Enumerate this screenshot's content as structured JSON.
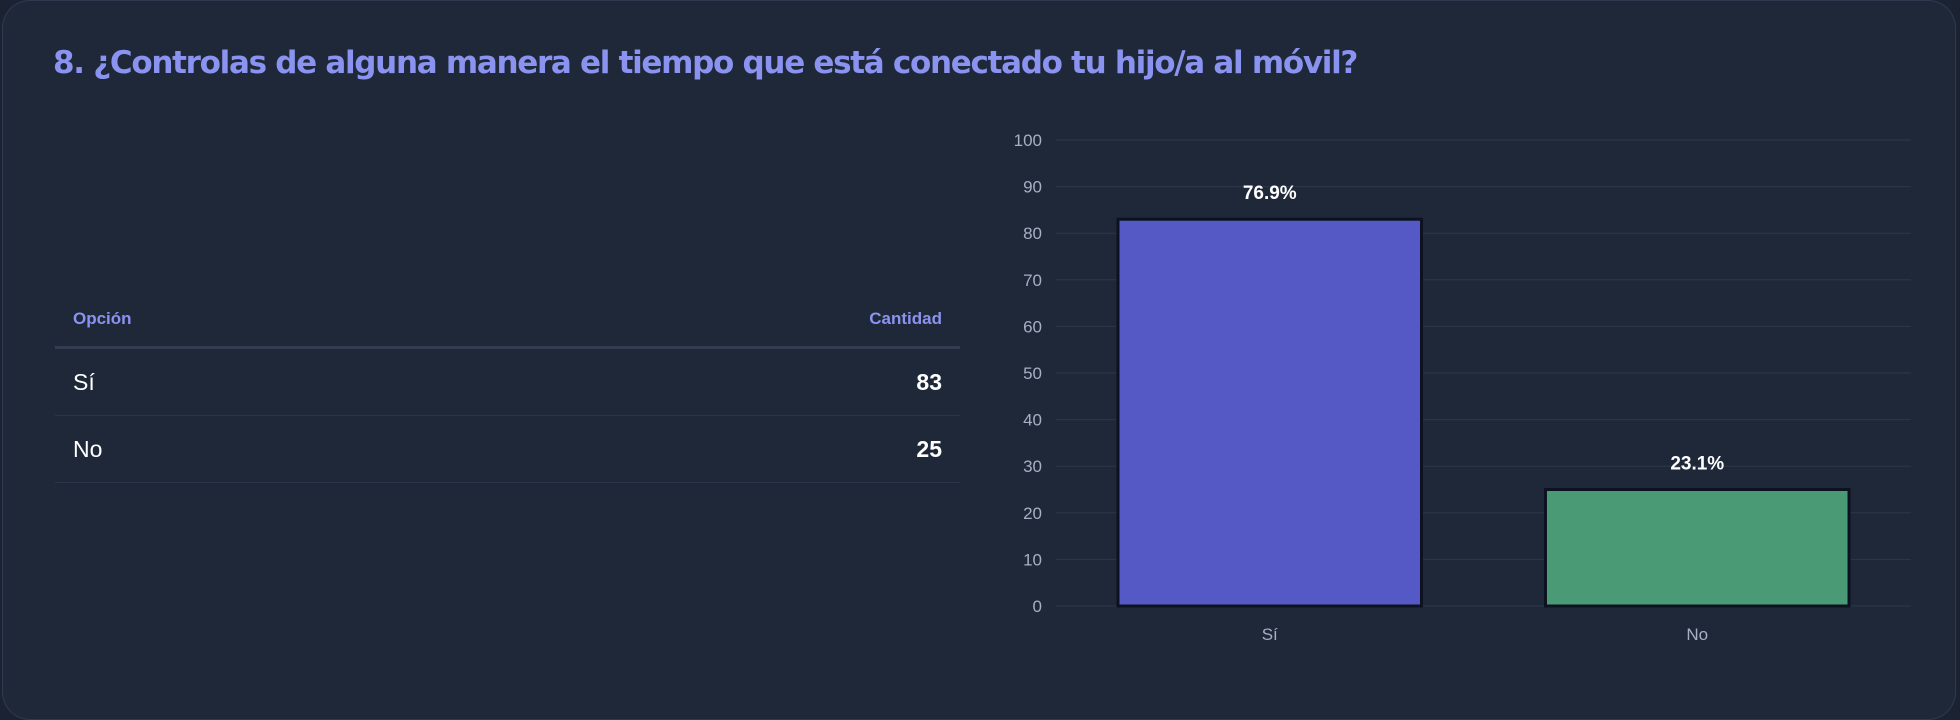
{
  "title": "8. ¿Controlas de alguna manera el tiempo que está conectado tu hijo/a al móvil?",
  "table": {
    "header_option": "Opción",
    "header_count": "Cantidad",
    "rows": [
      {
        "option": "Sí",
        "count": "83"
      },
      {
        "option": "No",
        "count": "25"
      }
    ]
  },
  "chart_data": {
    "type": "bar",
    "categories": [
      "Sí",
      "No"
    ],
    "values": [
      83,
      25
    ],
    "data_labels": [
      "76.9%",
      "23.1%"
    ],
    "colors": [
      "#5559c6",
      "#4a9a76"
    ],
    "bar_border_color": "#0d1220",
    "grid_color": "#2d3749",
    "ylim": [
      0,
      100
    ],
    "yticks": [
      0,
      10,
      20,
      30,
      40,
      50,
      60,
      70,
      80,
      90,
      100
    ],
    "grid": true,
    "xlabel": "",
    "ylabel": ""
  }
}
